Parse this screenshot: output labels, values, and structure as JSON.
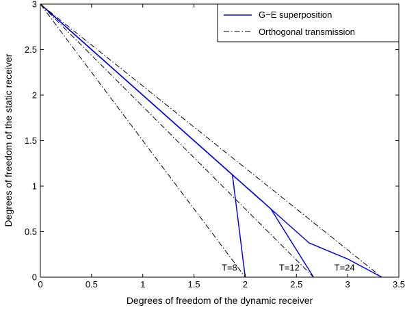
{
  "chart_data": {
    "type": "line",
    "xlabel": "Degrees of freedom of the dynamic receiver",
    "ylabel": "Degrees of freedom of the static receiver",
    "xlim": [
      0,
      3.5
    ],
    "ylim": [
      0,
      3
    ],
    "xticks": [
      "0",
      "0.5",
      "1",
      "1.5",
      "2",
      "2.5",
      "3",
      "3.5"
    ],
    "yticks": [
      "0",
      "0.5",
      "1",
      "1.5",
      "2",
      "2.5",
      "3"
    ],
    "xtick_values": [
      0,
      0.5,
      1,
      1.5,
      2,
      2.5,
      3,
      3.5
    ],
    "ytick_values": [
      0,
      0.5,
      1,
      1.5,
      2,
      2.5,
      3
    ],
    "grid": false,
    "legend_position": "top-right",
    "series": [
      {
        "name": "G−E superposition",
        "style": "solid",
        "color": "#0000ff",
        "lines": [
          {
            "x": [
              0,
              1.875,
              2
            ],
            "y": [
              3,
              1.125,
              0
            ]
          },
          {
            "x": [
              0,
              1.875,
              2.25,
              2.667
            ],
            "y": [
              3,
              1.125,
              0.75,
              0
            ]
          },
          {
            "x": [
              0,
              1.875,
              2.25,
              2.625,
              3.0,
              3.333
            ],
            "y": [
              3,
              1.125,
              0.75,
              0.375,
              0.2,
              0
            ]
          }
        ]
      },
      {
        "name": "Orthogonal transmission",
        "style": "dashdot",
        "color": "#000000",
        "lines": [
          {
            "x": [
              0,
              2
            ],
            "y": [
              3,
              0
            ]
          },
          {
            "x": [
              0,
              2.667
            ],
            "y": [
              3,
              0
            ]
          },
          {
            "x": [
              0,
              3.333
            ],
            "y": [
              3,
              0
            ]
          }
        ]
      }
    ],
    "annotations": [
      {
        "text": "T=8",
        "x": 1.77,
        "y": 0.07
      },
      {
        "text": "T=12",
        "x": 2.33,
        "y": 0.07
      },
      {
        "text": "T=24",
        "x": 2.87,
        "y": 0.07
      }
    ]
  }
}
